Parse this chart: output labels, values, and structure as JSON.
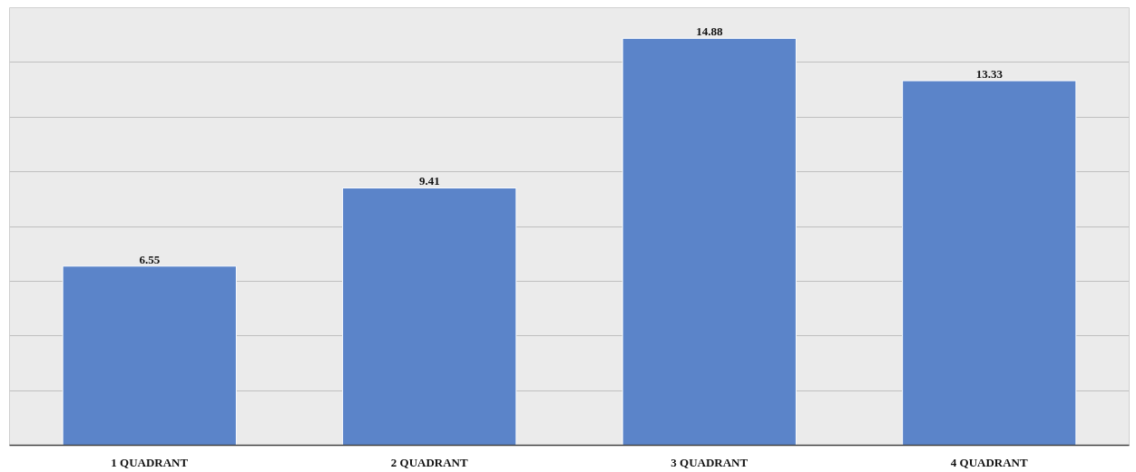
{
  "chart_data": {
    "type": "bar",
    "categories": [
      "1 QUADRANT",
      "2 QUADRANT",
      "3 QUADRANT",
      "4 QUADRANT"
    ],
    "values": [
      6.55,
      9.41,
      14.88,
      13.33
    ],
    "color": "#5b84c9",
    "ylim": [
      0,
      16
    ],
    "yticks": [
      0,
      2,
      4,
      6,
      8,
      10,
      12,
      14,
      16
    ],
    "grid": "y",
    "tick_labels": "x",
    "data_labels": true
  }
}
